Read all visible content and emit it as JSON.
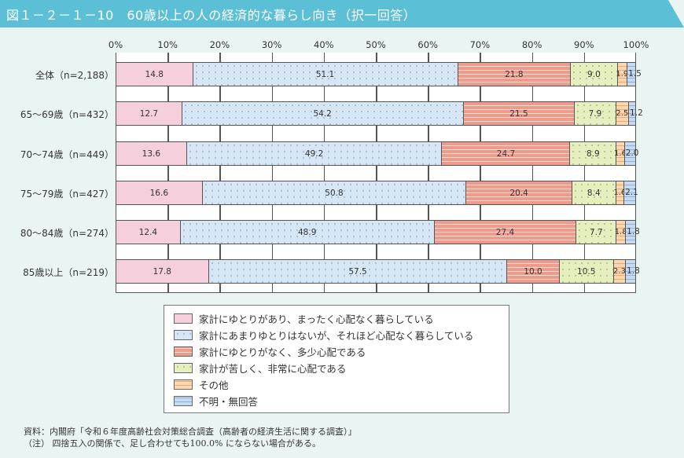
{
  "title": "図１－２－１－10　60歳以上の人の経済的な暮らし向き（択一回答）",
  "axis": {
    "ticks": [
      "0%",
      "10%",
      "20%",
      "30%",
      "40%",
      "50%",
      "60%",
      "70%",
      "80%",
      "90%",
      "100%"
    ]
  },
  "rows": [
    {
      "label": "全体（n=2,188）",
      "values": [
        "14.8",
        "51.1",
        "21.8",
        "9.0",
        "1.9",
        "1.5"
      ]
    },
    {
      "label": "65～69歳（n=432）",
      "values": [
        "12.7",
        "54.2",
        "21.5",
        "7.9",
        "2.5",
        "1.2"
      ]
    },
    {
      "label": "70～74歳（n=449）",
      "values": [
        "13.6",
        "49.2",
        "24.7",
        "8.9",
        "1.6",
        "2.0"
      ]
    },
    {
      "label": "75～79歳（n=427）",
      "values": [
        "16.6",
        "50.8",
        "20.4",
        "8.4",
        "1.6",
        "2.1"
      ]
    },
    {
      "label": "80～84歳（n=274）",
      "values": [
        "12.4",
        "48.9",
        "27.4",
        "7.7",
        "1.8",
        "1.8"
      ]
    },
    {
      "label": "85歳以上（n=219）",
      "values": [
        "17.8",
        "57.5",
        "10.0",
        "10.5",
        "2.3",
        "1.8"
      ]
    }
  ],
  "legend": [
    "家計にゆとりがあり、まったく心配なく暮らしている",
    "家計にあまりゆとりはないが、それほど心配なく暮らしている",
    "家計にゆとりがなく、多少心配である",
    "家計が苦しく、非常に心配である",
    "その他",
    "不明・無回答"
  ],
  "colors": {
    "title_bar": "#5bbfd6",
    "series": [
      "#f5cfdc",
      "#d6e6f4",
      "#ef9b8c",
      "#e6efbf",
      "#fcd7b4",
      "#c6dbf1"
    ]
  },
  "footnotes": {
    "source": "資料：内閣府「令和６年度高齢社会対策総合調査（高齢者の経済生活に関する調査）」",
    "note": "（注）  四捨五入の関係で、足し合わせても100.0% にならない場合がある。"
  },
  "chart_data": {
    "type": "bar",
    "orientation": "horizontal",
    "stacked": true,
    "title": "60歳以上の人の経済的な暮らし向き（択一回答）",
    "xlabel": "",
    "ylabel": "",
    "xlim": [
      0,
      100
    ],
    "x_ticks": [
      "0%",
      "10%",
      "20%",
      "30%",
      "40%",
      "50%",
      "60%",
      "70%",
      "80%",
      "90%",
      "100%"
    ],
    "grid": true,
    "legend_position": "bottom",
    "categories": [
      "全体（n=2,188）",
      "65～69歳（n=432）",
      "70～74歳（n=449）",
      "75～79歳（n=427）",
      "80～84歳（n=274）",
      "85歳以上（n=219）"
    ],
    "series": [
      {
        "name": "家計にゆとりがあり、まったく心配なく暮らしている",
        "values": [
          14.8,
          12.7,
          13.6,
          16.6,
          12.4,
          17.8
        ]
      },
      {
        "name": "家計にあまりゆとりはないが、それほど心配なく暮らしている",
        "values": [
          51.1,
          54.2,
          49.2,
          50.8,
          48.9,
          57.5
        ]
      },
      {
        "name": "家計にゆとりがなく、多少心配である",
        "values": [
          21.8,
          21.5,
          24.7,
          20.4,
          27.4,
          10.0
        ]
      },
      {
        "name": "家計が苦しく、非常に心配である",
        "values": [
          9.0,
          7.9,
          8.9,
          8.4,
          7.7,
          10.5
        ]
      },
      {
        "name": "その他",
        "values": [
          1.9,
          2.5,
          1.6,
          1.6,
          1.8,
          2.3
        ]
      },
      {
        "name": "不明・無回答",
        "values": [
          1.5,
          1.2,
          2.0,
          2.1,
          1.8,
          1.8
        ]
      }
    ],
    "source": "内閣府「令和６年度高齢社会対策総合調査（高齢者の経済生活に関する調査）」",
    "note": "四捨五入の関係で、足し合わせても100.0% にならない場合がある。"
  }
}
